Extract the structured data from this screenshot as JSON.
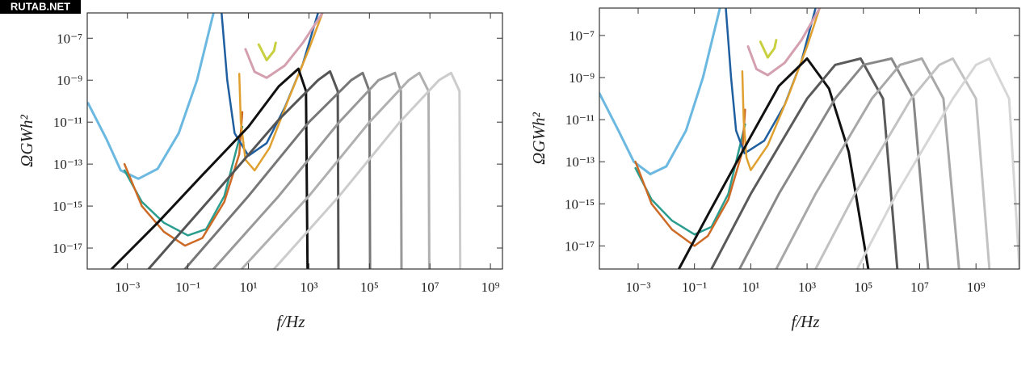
{
  "watermark": "RUTAB.NET",
  "chart_data": [
    {
      "type": "line",
      "xscale": "log",
      "yscale": "log",
      "xlabel": "f/Hz",
      "ylabel": "ΩGWh²",
      "xlim": [
        4.7e-05,
        2500000000.0
      ],
      "ylim": [
        1e-18,
        1.6e-06
      ],
      "xticks": [
        {
          "value": 0.001,
          "label": "10⁻³"
        },
        {
          "value": 0.1,
          "label": "10⁻¹"
        },
        {
          "value": 10,
          "label": "10¹"
        },
        {
          "value": 1000,
          "label": "10³"
        },
        {
          "value": 100000,
          "label": "10⁵"
        },
        {
          "value": 10000000,
          "label": "10⁷"
        },
        {
          "value": 1000000000,
          "label": "10⁹"
        }
      ],
      "yticks": [
        {
          "value": 1e-07,
          "label": "10⁻⁷"
        },
        {
          "value": 1e-09,
          "label": "10⁻⁹"
        },
        {
          "value": 1e-11,
          "label": "10⁻¹¹"
        },
        {
          "value": 1e-13,
          "label": "10⁻¹³"
        },
        {
          "value": 1e-15,
          "label": "10⁻¹⁵"
        },
        {
          "value": 1e-17,
          "label": "10⁻¹⁷"
        }
      ],
      "series": [
        {
          "color": "#6bb8e0",
          "linewidth": 3,
          "x": [
            5e-05,
            0.0002,
            0.0006,
            0.0023,
            0.01,
            0.05,
            0.2,
            0.7
          ],
          "values": [
            8e-11,
            1.6e-12,
            5e-14,
            2e-14,
            6e-14,
            3e-12,
            1e-09,
            1.6e-06
          ]
        },
        {
          "color": "#2a9d8f",
          "linewidth": 2.5,
          "x": [
            0.0008,
            0.003,
            0.016,
            0.1,
            0.4,
            1.6,
            6.3
          ],
          "values": [
            5e-14,
            1.6e-15,
            1.6e-16,
            4e-17,
            8e-17,
            3e-15,
            6e-12
          ]
        },
        {
          "color": "#cd6a26",
          "linewidth": 2.5,
          "x": [
            0.0008,
            0.003,
            0.016,
            0.08,
            0.3,
            1.6,
            5,
            6.3
          ],
          "values": [
            1e-13,
            1e-15,
            6e-17,
            1.3e-17,
            3e-17,
            1.6e-15,
            3e-13,
            3e-11
          ]
        },
        {
          "color": "#1f5fa0",
          "linewidth": 2.5,
          "x": [
            1.3,
            2,
            3.5,
            10,
            40,
            160,
            630,
            2000
          ],
          "values": [
            1.6e-06,
            1e-09,
            3e-12,
            2.5e-13,
            1e-12,
            5e-11,
            6e-09,
            1.6e-06
          ]
        },
        {
          "color": "#e0a030",
          "linewidth": 2.5,
          "x": [
            5,
            5.6,
            8,
            16,
            50,
            200,
            1000,
            2800
          ],
          "values": [
            2e-09,
            1e-11,
            1.6e-13,
            5e-14,
            6e-13,
            1e-10,
            3e-08,
            1.6e-06
          ]
        },
        {
          "color": "#d4a0b0",
          "linewidth": 3,
          "x": [
            8,
            16,
            40,
            160,
            630,
            2800
          ],
          "values": [
            3e-08,
            2.5e-09,
            1.3e-09,
            5e-09,
            6e-08,
            1.6e-06
          ]
        },
        {
          "color": "#c8d040",
          "linewidth": 3,
          "x": [
            22,
            40,
            70,
            80
          ],
          "values": [
            5e-08,
            9e-09,
            2.5e-08,
            6e-08
          ]
        },
        {
          "color": "#111111",
          "linewidth": 3,
          "x": [
            0.0003,
            0.01,
            0.3,
            10,
            100,
            450,
            800,
            900
          ],
          "values": [
            1e-18,
            1.6e-16,
            3e-14,
            6e-12,
            5e-10,
            3.5e-09,
            3e-10,
            1e-18
          ]
        },
        {
          "color": "#555555",
          "linewidth": 3,
          "x": [
            0.005,
            1,
            100,
            2000,
            5000,
            9000,
            9500
          ],
          "values": [
            1e-18,
            6e-15,
            1.3e-11,
            1e-09,
            2.6e-09,
            3e-10,
            1e-18
          ]
        },
        {
          "color": "#777777",
          "linewidth": 3,
          "x": [
            0.08,
            10,
            1000,
            25000,
            60000,
            100000,
            105000
          ],
          "values": [
            1e-18,
            3e-15,
            1e-11,
            1e-09,
            2.2e-09,
            3e-10,
            1e-18
          ]
        },
        {
          "color": "#999999",
          "linewidth": 3,
          "x": [
            0.7,
            100,
            10000,
            200000,
            700000,
            1100000,
            1150000
          ],
          "values": [
            1e-18,
            3e-15,
            1e-11,
            1e-09,
            2.2e-09,
            3e-10,
            1e-18
          ]
        },
        {
          "color": "#b0b0b0",
          "linewidth": 3,
          "x": [
            6,
            1000,
            100000,
            2000000,
            4500000,
            9000000,
            9500000
          ],
          "values": [
            1e-18,
            3e-15,
            1e-11,
            1e-09,
            2.2e-09,
            3e-10,
            1e-18
          ]
        },
        {
          "color": "#cccccc",
          "linewidth": 3,
          "x": [
            70,
            10000,
            1000000,
            20000000,
            50000000,
            95000000,
            100000000
          ],
          "values": [
            1e-18,
            3e-15,
            1e-11,
            1e-09,
            2.2e-09,
            3e-10,
            1e-18
          ]
        }
      ]
    },
    {
      "type": "line",
      "xscale": "log",
      "yscale": "log",
      "xlabel": "f/Hz",
      "ylabel": "ΩGWh²",
      "xlim": [
        4.2e-05,
        35000000000.0
      ],
      "ylim": [
        8e-19,
        2e-06
      ],
      "xticks": [
        {
          "value": 0.001,
          "label": "10⁻³"
        },
        {
          "value": 0.1,
          "label": "10⁻¹"
        },
        {
          "value": 10,
          "label": "10¹"
        },
        {
          "value": 1000,
          "label": "10³"
        },
        {
          "value": 100000,
          "label": "10⁵"
        },
        {
          "value": 10000000,
          "label": "10⁷"
        },
        {
          "value": 1000000000,
          "label": "10⁹"
        }
      ],
      "yticks": [
        {
          "value": 1e-07,
          "label": "10⁻⁷"
        },
        {
          "value": 1e-09,
          "label": "10⁻⁹"
        },
        {
          "value": 1e-11,
          "label": "10⁻¹¹"
        },
        {
          "value": 1e-13,
          "label": "10⁻¹³"
        },
        {
          "value": 1e-15,
          "label": "10⁻¹⁵"
        },
        {
          "value": 1e-17,
          "label": "10⁻¹⁷"
        }
      ],
      "series": [
        {
          "color": "#6bb8e0",
          "linewidth": 3,
          "x": [
            4.2e-05,
            0.0002,
            0.0007,
            0.0027,
            0.01,
            0.05,
            0.2,
            0.8
          ],
          "values": [
            1.8e-10,
            3e-12,
            1e-13,
            2.6e-14,
            6e-14,
            3e-12,
            1e-09,
            2e-06
          ]
        },
        {
          "color": "#2a9d8f",
          "linewidth": 2.5,
          "x": [
            0.0008,
            0.003,
            0.016,
            0.1,
            0.4,
            1.6,
            6.3
          ],
          "values": [
            5e-14,
            1.6e-15,
            1.6e-16,
            3.5e-17,
            8e-17,
            3e-15,
            6e-12
          ]
        },
        {
          "color": "#cd6a26",
          "linewidth": 2.5,
          "x": [
            0.0008,
            0.003,
            0.016,
            0.1,
            0.3,
            1.6,
            5,
            6.3
          ],
          "values": [
            1e-13,
            1e-15,
            6e-17,
            1e-17,
            3e-17,
            1.6e-15,
            3e-13,
            3e-11
          ]
        },
        {
          "color": "#1f5fa0",
          "linewidth": 2.5,
          "x": [
            1.3,
            2,
            3,
            6,
            30,
            160,
            630,
            2000
          ],
          "values": [
            2e-06,
            1e-09,
            3e-12,
            2.5e-13,
            1e-12,
            5e-11,
            6e-09,
            2e-06
          ]
        },
        {
          "color": "#e0a030",
          "linewidth": 2.5,
          "x": [
            5,
            5.6,
            7,
            10,
            40,
            200,
            1000,
            2800
          ],
          "values": [
            2e-09,
            1e-11,
            1.6e-13,
            4e-14,
            6e-13,
            1e-10,
            3e-08,
            2e-06
          ]
        },
        {
          "color": "#d4a0b0",
          "linewidth": 3,
          "x": [
            8,
            16,
            40,
            160,
            630,
            2800
          ],
          "values": [
            3e-08,
            2.5e-09,
            1.3e-09,
            5e-09,
            6e-08,
            2e-06
          ]
        },
        {
          "color": "#c8d040",
          "linewidth": 3,
          "x": [
            22,
            40,
            70,
            80
          ],
          "values": [
            5e-08,
            9e-09,
            2.5e-08,
            6e-08
          ]
        },
        {
          "color": "#111111",
          "linewidth": 3,
          "x": [
            0.028,
            0.3,
            10,
            100,
            1000,
            6000,
            30000,
            150000
          ],
          "values": [
            8e-19,
            3e-16,
            1.6e-12,
            4e-10,
            8e-09,
            3e-10,
            3e-13,
            8e-19
          ]
        },
        {
          "color": "#5a5a5a",
          "linewidth": 3,
          "x": [
            0.4,
            10,
            1000,
            10000,
            80000,
            500000,
            1600000
          ],
          "values": [
            8e-19,
            3e-15,
            1e-10,
            4e-09,
            8e-09,
            1e-10,
            8e-19
          ]
        },
        {
          "color": "#888888",
          "linewidth": 3,
          "x": [
            4,
            100,
            10000,
            100000,
            1000000,
            6000000,
            20000000
          ],
          "values": [
            8e-19,
            3e-15,
            1e-10,
            4e-09,
            8e-09,
            1e-10,
            8e-19
          ]
        },
        {
          "color": "#a8a8a8",
          "linewidth": 3,
          "x": [
            80,
            2000,
            200000,
            2000000,
            12000000,
            70000000,
            250000000
          ],
          "values": [
            8e-19,
            3e-15,
            1e-10,
            4e-09,
            8e-09,
            1e-10,
            8e-19
          ]
        },
        {
          "color": "#c2c2c2",
          "linewidth": 3,
          "x": [
            2000,
            50000,
            5000000,
            50000000,
            150000000,
            1000000000,
            3000000000
          ],
          "values": [
            8e-19,
            3e-15,
            1e-10,
            4e-09,
            8e-09,
            1e-10,
            8e-19
          ]
        },
        {
          "color": "#d6d6d6",
          "linewidth": 3,
          "x": [
            60000,
            1500000,
            150000000,
            1000000000,
            3000000000,
            15000000000,
            35000000000
          ],
          "values": [
            8e-19,
            3e-15,
            1e-10,
            4e-09,
            8e-09,
            1e-10,
            8e-19
          ]
        }
      ]
    }
  ]
}
